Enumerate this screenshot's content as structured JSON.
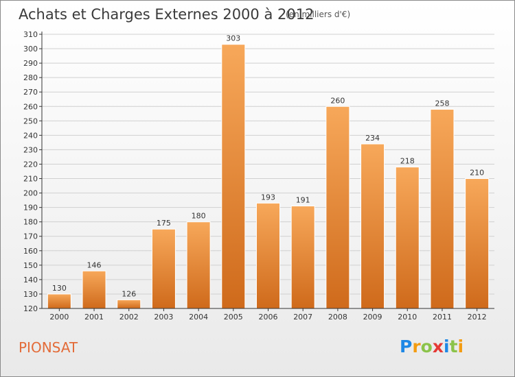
{
  "title": "Achats et Charges Externes 2000 à 2012",
  "subtitle": "(en milliers d'€)",
  "commune": "PIONSAT",
  "logo": {
    "text": "Proxiti",
    "letters": [
      {
        "ch": "P",
        "color": "#1e88e5"
      },
      {
        "ch": "r",
        "color": "#f39c12"
      },
      {
        "ch": "o",
        "color": "#8bc34a"
      },
      {
        "ch": "x",
        "color": "#e53935"
      },
      {
        "ch": "i",
        "color": "#1e88e5"
      },
      {
        "ch": "t",
        "color": "#8bc34a"
      },
      {
        "ch": "i",
        "color": "#f39c12"
      }
    ]
  },
  "colors": {
    "bar_top": "#f7a85a",
    "bar_bottom": "#cf6a1b",
    "grid": "#d0d0d0",
    "axis": "#333333",
    "text": "#333333"
  },
  "chart_data": {
    "type": "bar",
    "categories": [
      "2000",
      "2001",
      "2002",
      "2003",
      "2004",
      "2005",
      "2006",
      "2007",
      "2008",
      "2009",
      "2010",
      "2011",
      "2012"
    ],
    "values": [
      130,
      146,
      126,
      175,
      180,
      303,
      193,
      191,
      260,
      234,
      218,
      258,
      210
    ],
    "ylim": [
      120,
      310
    ],
    "ytick_step": 10,
    "grid": true,
    "data_labels": true
  }
}
